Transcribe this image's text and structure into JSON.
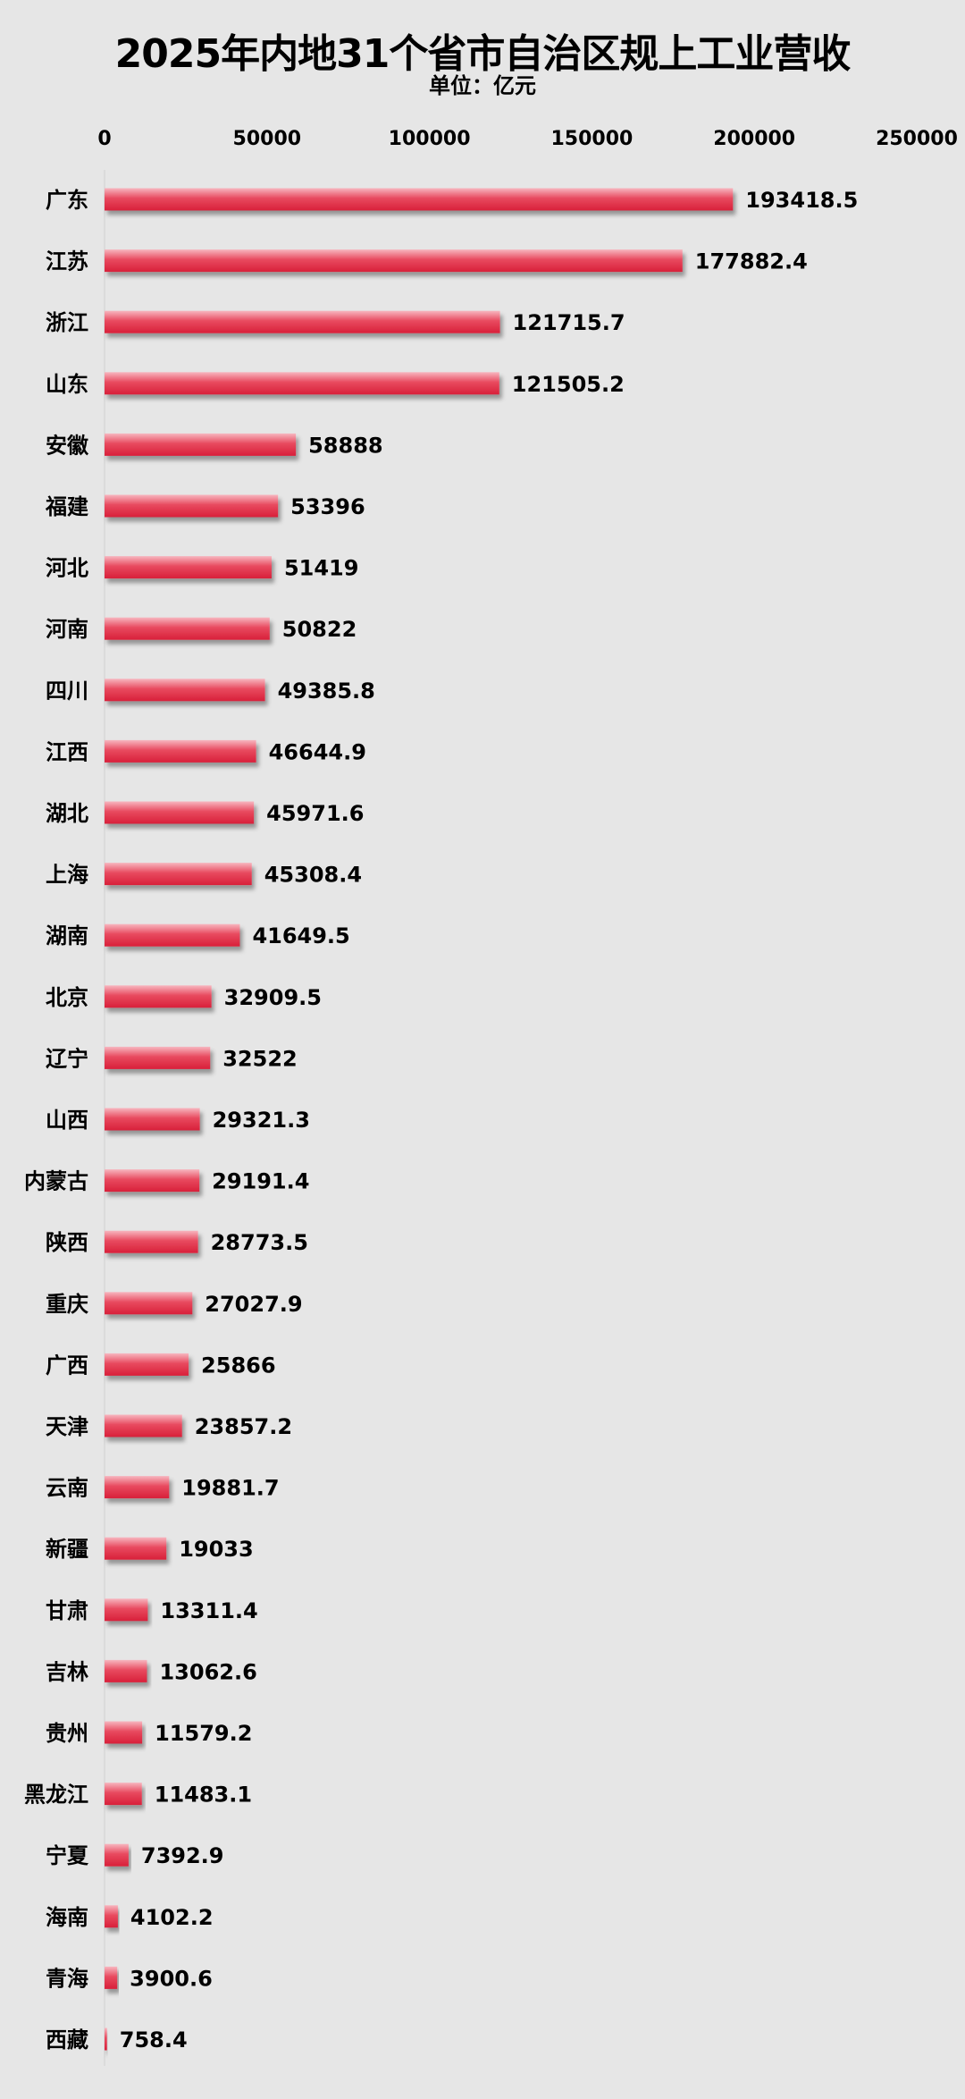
{
  "chart_data": {
    "type": "bar",
    "orientation": "horizontal",
    "title": "2025年内地31个省市自治区规上工业营收",
    "subtitle": "单位：亿元",
    "xlim": [
      0,
      250000
    ],
    "xticks": [
      0,
      50000,
      100000,
      150000,
      200000,
      250000
    ],
    "tick_labels": [
      "0",
      "50000",
      "100000",
      "150000",
      "200000",
      "250000"
    ],
    "axis_position": "top",
    "grid": false,
    "bar_color": "#e0283f",
    "categories": [
      "广东",
      "江苏",
      "浙江",
      "山东",
      "安徽",
      "福建",
      "河北",
      "河南",
      "四川",
      "江西",
      "湖北",
      "上海",
      "湖南",
      "北京",
      "辽宁",
      "山西",
      "内蒙古",
      "陕西",
      "重庆",
      "广西",
      "天津",
      "云南",
      "新疆",
      "甘肃",
      "吉林",
      "贵州",
      "黑龙江",
      "宁夏",
      "海南",
      "青海",
      "西藏"
    ],
    "values": [
      193418.5,
      177882.4,
      121715.7,
      121505.2,
      58888,
      53396,
      51419,
      50822,
      49385.8,
      46644.9,
      45971.6,
      45308.4,
      41649.5,
      32909.5,
      32522,
      29321.3,
      29191.4,
      28773.5,
      27027.9,
      25866,
      23857.2,
      19881.7,
      19033,
      13311.4,
      13062.6,
      11579.2,
      11483.1,
      7392.9,
      4102.2,
      3900.6,
      758.4
    ],
    "value_labels": [
      "193418.5",
      "177882.4",
      "121715.7",
      "121505.2",
      "58888",
      "53396",
      "51419",
      "50822",
      "49385.8",
      "46644.9",
      "45971.6",
      "45308.4",
      "41649.5",
      "32909.5",
      "32522",
      "29321.3",
      "29191.4",
      "28773.5",
      "27027.9",
      "25866",
      "23857.2",
      "19881.7",
      "19033",
      "13311.4",
      "13062.6",
      "11579.2",
      "11483.1",
      "7392.9",
      "4102.2",
      "3900.6",
      "758.4"
    ]
  }
}
